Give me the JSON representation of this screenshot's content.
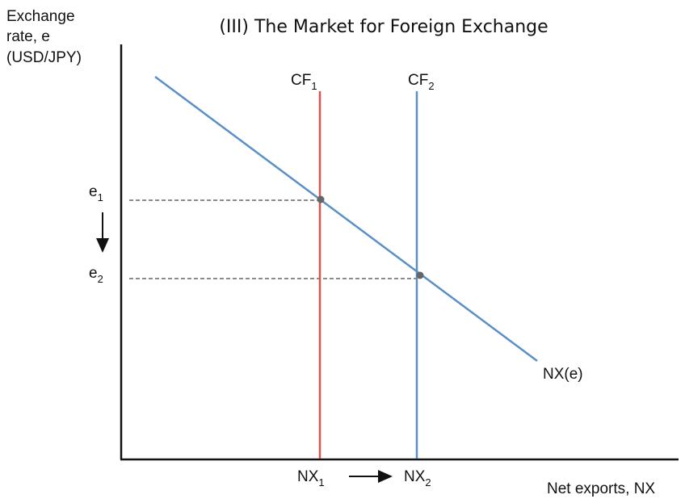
{
  "title": "(III) The Market for Foreign Exchange",
  "y_axis_label": [
    "Exchange",
    "rate, e",
    "(USD/JPY)"
  ],
  "x_axis_label": "Net exports, NX",
  "demand_curve": {
    "label": "NX(e)"
  },
  "supply_curves": [
    {
      "base": "CF",
      "sub": "1"
    },
    {
      "base": "CF",
      "sub": "2"
    }
  ],
  "price_levels": [
    {
      "base": "e",
      "sub": "1"
    },
    {
      "base": "e",
      "sub": "2"
    }
  ],
  "quantity_levels": [
    {
      "base": "NX",
      "sub": "1"
    },
    {
      "base": "NX",
      "sub": "2"
    }
  ]
}
